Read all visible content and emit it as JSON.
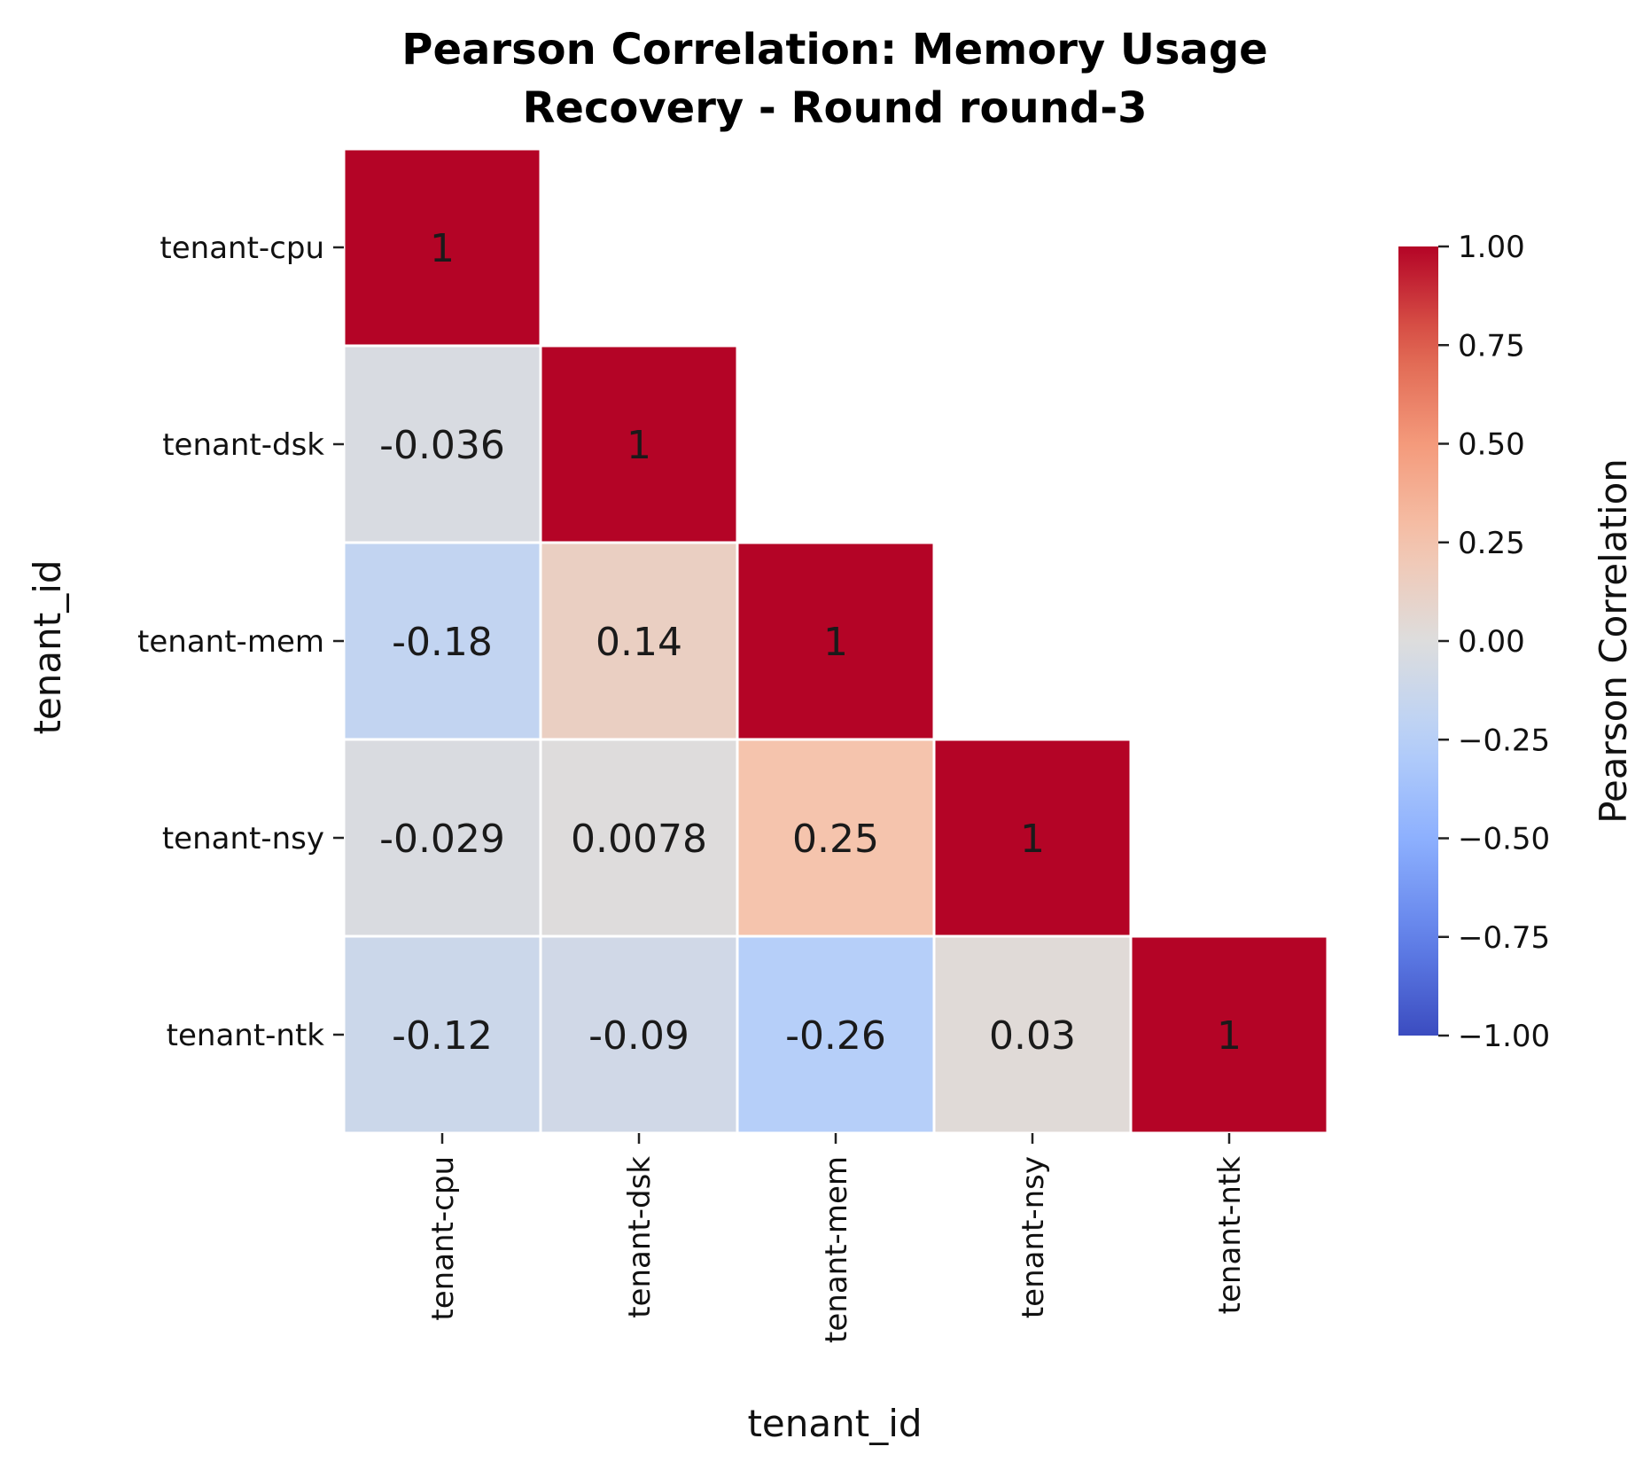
{
  "chart_data": {
    "type": "heatmap",
    "title_lines": [
      "Pearson Correlation: Memory Usage",
      "Recovery - Round round-3"
    ],
    "xlabel": "tenant_id",
    "ylabel": "tenant_id",
    "categories": [
      "tenant-cpu",
      "tenant-dsk",
      "tenant-mem",
      "tenant-nsy",
      "tenant-ntk"
    ],
    "matrix": [
      [
        1,
        null,
        null,
        null,
        null
      ],
      [
        -0.036,
        1,
        null,
        null,
        null
      ],
      [
        -0.18,
        0.14,
        1,
        null,
        null
      ],
      [
        -0.029,
        0.0078,
        0.25,
        1,
        null
      ],
      [
        -0.12,
        -0.09,
        -0.26,
        0.03,
        1
      ]
    ],
    "annotations": [
      [
        "1",
        "",
        "",
        "",
        ""
      ],
      [
        "-0.036",
        "1",
        "",
        "",
        ""
      ],
      [
        "-0.18",
        "0.14",
        "1",
        "",
        ""
      ],
      [
        "-0.029",
        "0.0078",
        "0.25",
        "1",
        ""
      ],
      [
        "-0.12",
        "-0.09",
        "-0.26",
        "0.03",
        "1"
      ]
    ],
    "mask": "upper triangle",
    "colormap": "coolwarm",
    "vmin": -1,
    "vmax": 1,
    "colorbar": {
      "label": "Pearson Correlation",
      "ticks": [
        1.0,
        0.75,
        0.5,
        0.25,
        0.0,
        -0.25,
        -0.5,
        -0.75,
        -1.0
      ],
      "tick_labels": [
        "1.00",
        "0.75",
        "0.50",
        "0.25",
        "0.00",
        "−0.25",
        "−0.50",
        "−0.75",
        "−1.00"
      ]
    }
  }
}
